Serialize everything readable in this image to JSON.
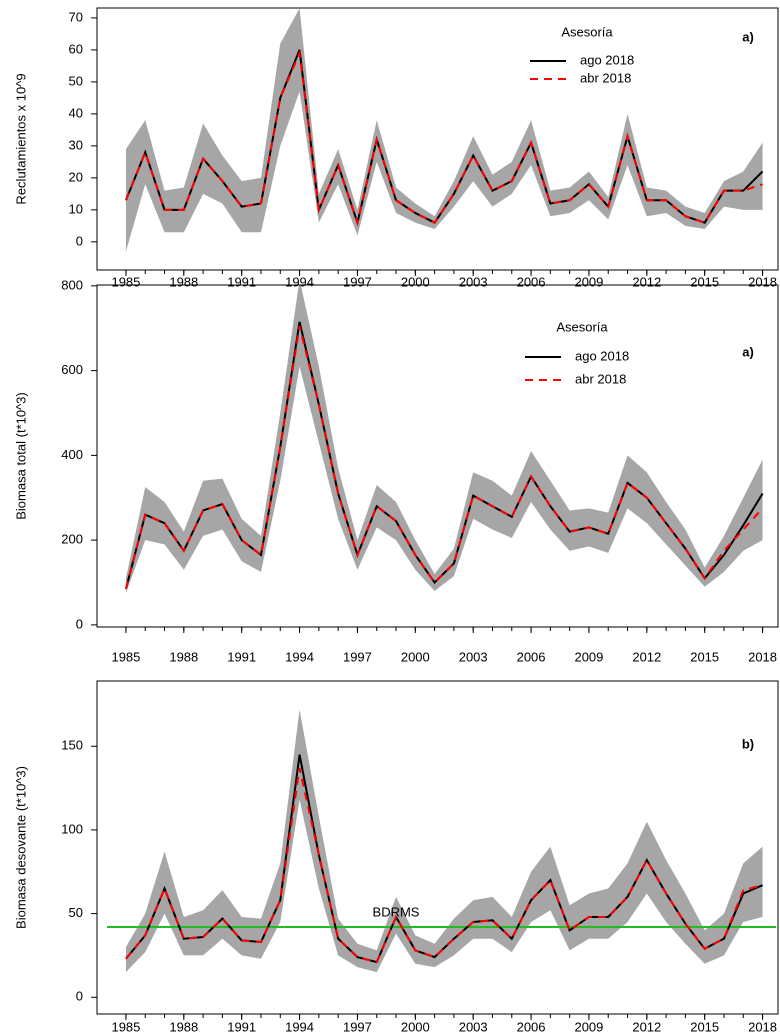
{
  "chart_data": [
    {
      "type": "line",
      "y_label": "Reclutamientos x 10^9",
      "panel_label": "a)",
      "x": [
        1985,
        1986,
        1987,
        1988,
        1989,
        1990,
        1991,
        1992,
        1993,
        1994,
        1995,
        1996,
        1997,
        1998,
        1999,
        2000,
        2001,
        2002,
        2003,
        2004,
        2005,
        2006,
        2007,
        2008,
        2009,
        2010,
        2011,
        2012,
        2013,
        2014,
        2015,
        2016,
        2017,
        2018
      ],
      "xlim": [
        1983.5,
        2018.8
      ],
      "xticks": [
        1985,
        1988,
        1991,
        1994,
        1997,
        2000,
        2003,
        2006,
        2009,
        2012,
        2015,
        2018
      ],
      "ylim": [
        -8.8,
        73.1
      ],
      "yticks": [
        0,
        10,
        20,
        30,
        40,
        50,
        60,
        70
      ],
      "legend": {
        "title": "Asesoría"
      },
      "band": {
        "color": "#a6a6a6",
        "upper": [
          29,
          38,
          16,
          17,
          37,
          27,
          19,
          20,
          62,
          73,
          15,
          29,
          10,
          38,
          17,
          12,
          8,
          19,
          33,
          21,
          25,
          38,
          16,
          17,
          22,
          14,
          40,
          17,
          16,
          11,
          9,
          19,
          22,
          31
        ],
        "lower": [
          -3,
          18,
          3,
          3,
          15,
          12,
          3,
          3,
          30,
          47,
          6,
          18,
          2,
          25,
          9,
          6,
          4,
          11,
          19,
          11,
          15,
          24,
          8,
          9,
          13,
          7,
          24,
          8,
          9,
          5,
          4,
          11,
          10,
          10
        ]
      },
      "series": [
        {
          "name": "ago 2018",
          "color": "#000000",
          "dash": false,
          "values": [
            13,
            28,
            10,
            10,
            26,
            19,
            11,
            12,
            45,
            60,
            10,
            24,
            6,
            32,
            13,
            9,
            6,
            15,
            27,
            16,
            19,
            31,
            12,
            13,
            18,
            11,
            33,
            13,
            13,
            8,
            6,
            16,
            16,
            22
          ]
        },
        {
          "name": "abr 2018",
          "color": "#ff0000",
          "dash": true,
          "values": [
            13,
            28,
            10,
            10,
            26,
            19,
            11,
            12,
            45,
            59,
            10,
            24,
            6,
            32,
            13,
            9,
            6,
            15,
            27,
            16,
            19,
            31,
            12,
            13,
            18,
            11,
            33,
            13,
            13,
            8,
            6,
            16,
            16,
            18
          ]
        }
      ]
    },
    {
      "type": "line",
      "y_label": "Biomasa total (t*10^3)",
      "panel_label": "a)",
      "x": [
        1985,
        1986,
        1987,
        1988,
        1989,
        1990,
        1991,
        1992,
        1993,
        1994,
        1995,
        1996,
        1997,
        1998,
        1999,
        2000,
        2001,
        2002,
        2003,
        2004,
        2005,
        2006,
        2007,
        2008,
        2009,
        2010,
        2011,
        2012,
        2013,
        2014,
        2015,
        2016,
        2017,
        2018
      ],
      "xlim": [
        1983.5,
        2018.8
      ],
      "xticks": [
        1985,
        1988,
        1991,
        1994,
        1997,
        2000,
        2003,
        2006,
        2009,
        2012,
        2015,
        2018
      ],
      "ylim": [
        -5,
        802
      ],
      "yticks": [
        0,
        200,
        400,
        600,
        800
      ],
      "legend": {
        "title": "Asesoría"
      },
      "band": {
        "color": "#a6a6a6",
        "upper": [
          110,
          325,
          290,
          220,
          340,
          345,
          250,
          210,
          500,
          815,
          610,
          370,
          200,
          330,
          290,
          200,
          120,
          180,
          360,
          340,
          305,
          410,
          340,
          270,
          275,
          265,
          400,
          360,
          290,
          225,
          135,
          210,
          300,
          390
        ],
        "lower": [
          75,
          200,
          190,
          130,
          210,
          225,
          150,
          125,
          340,
          610,
          430,
          250,
          130,
          230,
          200,
          130,
          80,
          115,
          250,
          225,
          205,
          290,
          225,
          175,
          185,
          170,
          275,
          240,
          190,
          140,
          90,
          125,
          175,
          200
        ]
      },
      "series": [
        {
          "name": "ago 2018",
          "color": "#000000",
          "dash": false,
          "values": [
            85,
            260,
            240,
            175,
            270,
            285,
            200,
            165,
            420,
            715,
            520,
            310,
            165,
            280,
            245,
            165,
            100,
            145,
            305,
            280,
            255,
            350,
            280,
            220,
            230,
            215,
            335,
            300,
            240,
            180,
            110,
            165,
            235,
            310
          ]
        },
        {
          "name": "abr 2018",
          "color": "#ff0000",
          "dash": true,
          "values": [
            85,
            260,
            240,
            175,
            270,
            285,
            200,
            165,
            420,
            705,
            520,
            310,
            165,
            280,
            245,
            165,
            100,
            145,
            305,
            280,
            255,
            350,
            280,
            220,
            230,
            215,
            335,
            300,
            240,
            180,
            110,
            175,
            225,
            275
          ]
        }
      ]
    },
    {
      "type": "line",
      "y_label": "Biomasa desovante (t*10^3)",
      "panel_label": "b)",
      "x": [
        1985,
        1986,
        1987,
        1988,
        1989,
        1990,
        1991,
        1992,
        1993,
        1994,
        1995,
        1996,
        1997,
        1998,
        1999,
        2000,
        2001,
        2002,
        2003,
        2004,
        2005,
        2006,
        2007,
        2008,
        2009,
        2010,
        2011,
        2012,
        2013,
        2014,
        2015,
        2016,
        2017,
        2018
      ],
      "xlim": [
        1983.5,
        2018.8
      ],
      "xticks": [
        1985,
        1988,
        1991,
        1994,
        1997,
        2000,
        2003,
        2006,
        2009,
        2012,
        2015,
        2018
      ],
      "ylim": [
        -10,
        189
      ],
      "yticks": [
        0,
        50,
        100,
        150
      ],
      "hline": {
        "value": 42,
        "label": "BDRMS",
        "color": "#22bb22"
      },
      "band": {
        "color": "#a6a6a6",
        "upper": [
          30,
          50,
          87,
          48,
          52,
          64,
          48,
          47,
          80,
          172,
          108,
          47,
          32,
          28,
          60,
          37,
          32,
          47,
          58,
          60,
          48,
          75,
          90,
          55,
          62,
          65,
          80,
          105,
          82,
          62,
          40,
          50,
          80,
          90
        ],
        "lower": [
          15,
          27,
          50,
          25,
          25,
          35,
          25,
          23,
          45,
          118,
          65,
          25,
          18,
          15,
          38,
          20,
          18,
          25,
          35,
          35,
          27,
          45,
          52,
          28,
          35,
          35,
          45,
          62,
          45,
          32,
          20,
          25,
          45,
          48
        ]
      },
      "series": [
        {
          "color": "#000000",
          "dash": false,
          "values": [
            23,
            37,
            65,
            35,
            36,
            47,
            34,
            33,
            58,
            145,
            85,
            35,
            24,
            21,
            48,
            28,
            24,
            35,
            45,
            46,
            35,
            58,
            70,
            40,
            48,
            48,
            60,
            82,
            62,
            44,
            29,
            35,
            62,
            67
          ]
        },
        {
          "color": "#ff0000",
          "dash": true,
          "values": [
            23,
            37,
            65,
            35,
            36,
            47,
            34,
            33,
            58,
            137,
            85,
            35,
            24,
            21,
            48,
            28,
            24,
            35,
            45,
            46,
            35,
            58,
            70,
            40,
            48,
            48,
            60,
            82,
            62,
            44,
            29,
            35,
            64,
            67
          ]
        }
      ]
    }
  ]
}
